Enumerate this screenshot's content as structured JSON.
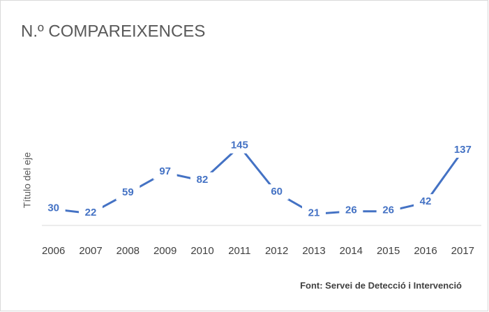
{
  "chart_data": {
    "type": "line",
    "title": "N.º COMPAREIXENCES",
    "y_label": "Título del eje",
    "source": "Font: Servei de Detecció i Intervenció",
    "categories": [
      "2006",
      "2007",
      "2008",
      "2009",
      "2010",
      "2011",
      "2012",
      "2013",
      "2014",
      "2015",
      "2016",
      "2017"
    ],
    "values": [
      30,
      22,
      59,
      97,
      82,
      145,
      60,
      21,
      26,
      26,
      42,
      137
    ],
    "color": "#4472c4",
    "ylim": [
      0,
      160
    ]
  }
}
